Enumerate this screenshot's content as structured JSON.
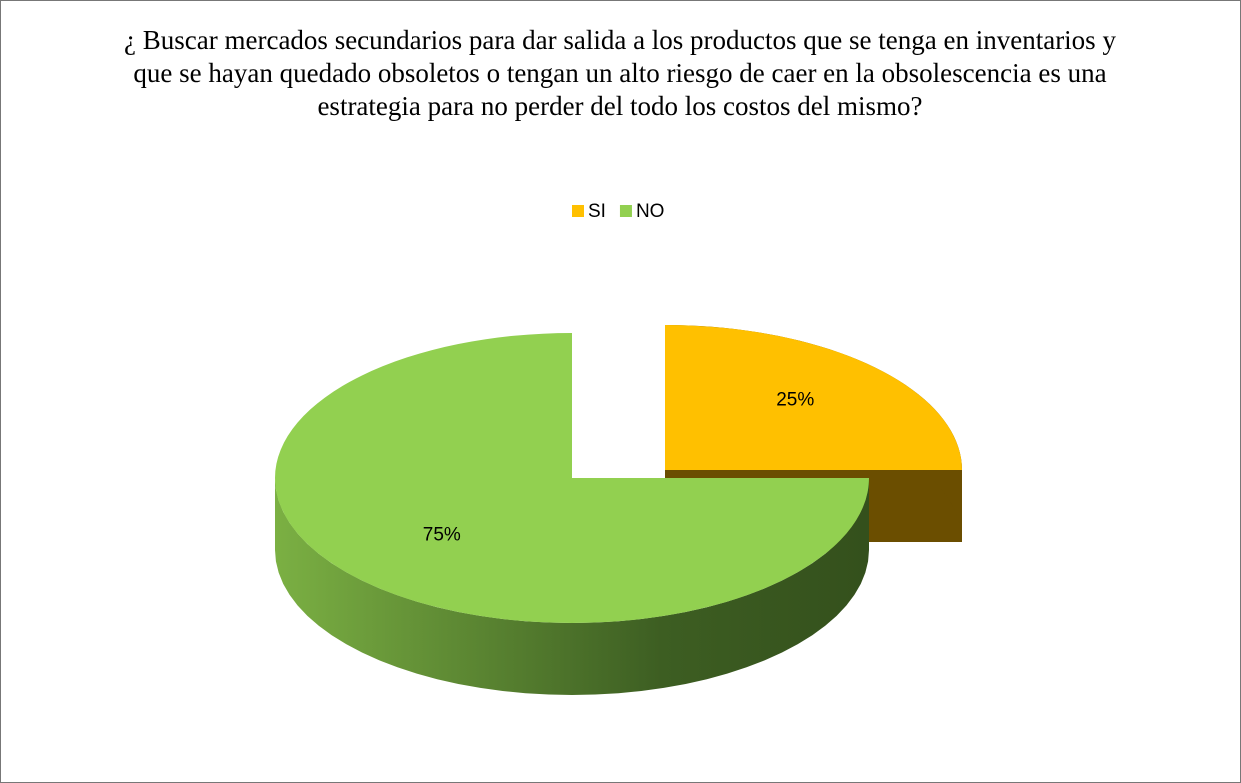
{
  "chart_data": {
    "type": "pie",
    "title": "¿ Buscar mercados secundarios para dar salida a los productos que se tenga en inventarios y que se hayan quedado obsoletos o tengan un alto riesgo de caer en la obsolescencia es una estrategia para no perder del todo los costos del mismo?",
    "categories": [
      "SI",
      "NO"
    ],
    "values": [
      25,
      75
    ],
    "value_labels": [
      "25%",
      "75%"
    ],
    "colors": [
      "#ffc000",
      "#92d050"
    ],
    "legend": "top"
  }
}
